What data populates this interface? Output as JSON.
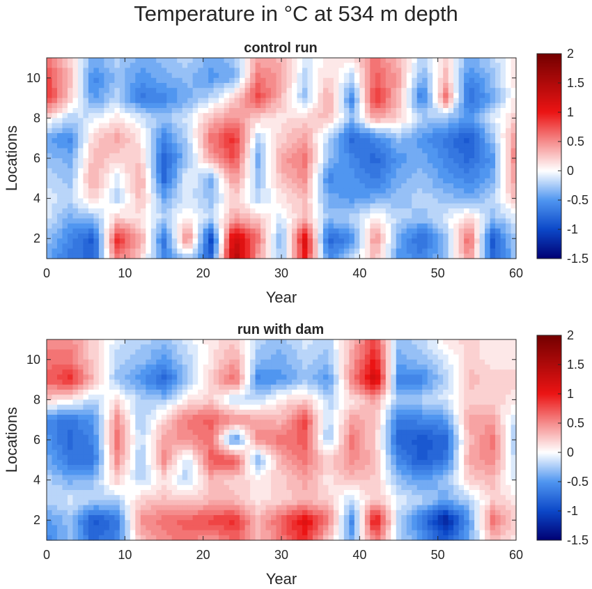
{
  "figure": {
    "title": "Temperature in °C at 534 m depth"
  },
  "chart_data": [
    {
      "type": "heatmap",
      "title": "control run",
      "xlabel": "Year",
      "ylabel": "Locations",
      "xlim": [
        0,
        60
      ],
      "ylim": [
        1,
        11
      ],
      "xticks": [
        "0",
        "10",
        "20",
        "30",
        "40",
        "50",
        "60"
      ],
      "yticks": [
        "2",
        "4",
        "6",
        "8",
        "10"
      ],
      "colorbar": {
        "min": -1.5,
        "max": 2,
        "ticks": [
          "2",
          "1.5",
          "1",
          "0.5",
          "0",
          "-0.5",
          "-1",
          "-1.5"
        ]
      },
      "x": [
        0,
        3,
        6,
        9,
        12,
        15,
        18,
        21,
        24,
        27,
        30,
        33,
        36,
        39,
        42,
        45,
        48,
        51,
        54,
        57,
        60
      ],
      "y": [
        1,
        2,
        3,
        4,
        5,
        6,
        7,
        8,
        9,
        10,
        11
      ],
      "z": [
        [
          -0.4,
          -0.7,
          -0.8,
          0.6,
          0.2,
          -0.6,
          -0.2,
          -0.8,
          1.5,
          0.4,
          -0.3,
          1.0,
          -0.6,
          -0.2,
          0.3,
          -0.5,
          -0.6,
          -0.3,
          0.5,
          -0.8,
          -0.3
        ],
        [
          -0.3,
          -0.6,
          -0.9,
          0.9,
          0.4,
          -0.7,
          0.6,
          -1.0,
          1.3,
          0.6,
          -0.4,
          1.1,
          -0.8,
          -0.6,
          0.5,
          -0.4,
          -0.8,
          -0.3,
          0.7,
          -0.9,
          -0.2
        ],
        [
          -0.1,
          -0.4,
          -0.3,
          0.2,
          0.1,
          -0.2,
          0.1,
          -0.2,
          0.4,
          0.2,
          -0.1,
          0.3,
          -0.3,
          -0.2,
          0.1,
          -0.2,
          -0.3,
          -0.1,
          0.2,
          -0.3,
          -0.1
        ],
        [
          -0.1,
          -0.2,
          0.2,
          -0.2,
          0.3,
          -0.4,
          -0.1,
          -0.3,
          0.2,
          -0.2,
          0.1,
          0.3,
          -0.4,
          -0.5,
          -0.4,
          -0.3,
          -0.2,
          -0.3,
          -0.4,
          -0.2,
          0.3
        ],
        [
          -0.2,
          -0.3,
          0.4,
          -0.1,
          0.4,
          -0.8,
          0.0,
          -0.4,
          0.5,
          -0.3,
          0.3,
          0.5,
          -0.6,
          -0.5,
          -0.7,
          -0.4,
          -0.3,
          -0.5,
          -0.6,
          -0.4,
          0.5
        ],
        [
          -0.3,
          -0.4,
          0.3,
          0.2,
          0.2,
          -0.8,
          -0.3,
          0.4,
          0.8,
          -0.4,
          0.4,
          0.6,
          -0.3,
          -0.6,
          -0.8,
          -0.5,
          -0.4,
          -0.6,
          -0.8,
          -0.5,
          0.6
        ],
        [
          -0.4,
          -0.6,
          0.2,
          0.4,
          0.1,
          -0.6,
          -0.2,
          0.6,
          0.9,
          -0.2,
          0.2,
          0.4,
          -0.2,
          -0.8,
          -0.6,
          -0.3,
          -0.5,
          -0.7,
          -0.9,
          -0.3,
          0.5
        ],
        [
          0.1,
          -0.2,
          -0.1,
          0.1,
          -0.1,
          -0.3,
          -0.1,
          0.3,
          0.5,
          0.2,
          0.1,
          0.2,
          0.3,
          -0.3,
          0.4,
          0.2,
          -0.2,
          -0.3,
          -0.5,
          -0.1,
          0.2
        ],
        [
          0.9,
          0.2,
          -0.5,
          -0.2,
          -0.7,
          -0.6,
          -0.4,
          -0.2,
          0.2,
          0.8,
          0.3,
          -0.3,
          0.4,
          -0.6,
          0.9,
          0.3,
          -0.7,
          0.6,
          -0.8,
          -0.4,
          0.1
        ],
        [
          0.8,
          0.3,
          -0.6,
          -0.3,
          -0.5,
          -0.4,
          -0.3,
          -0.5,
          -0.4,
          0.6,
          0.4,
          -0.2,
          0.2,
          -0.2,
          0.7,
          0.4,
          -0.4,
          0.3,
          -0.6,
          -0.3,
          0.1
        ],
        [
          0.6,
          0.2,
          -0.4,
          -0.2,
          -0.4,
          -0.3,
          -0.2,
          -0.4,
          -0.3,
          0.4,
          0.3,
          -0.1,
          0.1,
          0.1,
          0.6,
          0.3,
          -0.2,
          0.2,
          -0.4,
          -0.2,
          0.1
        ]
      ]
    },
    {
      "type": "heatmap",
      "title": "run with dam",
      "xlabel": "Year",
      "ylabel": "Locations",
      "xlim": [
        0,
        60
      ],
      "ylim": [
        1,
        11
      ],
      "xticks": [
        "0",
        "10",
        "20",
        "30",
        "40",
        "50",
        "60"
      ],
      "yticks": [
        "2",
        "4",
        "6",
        "8",
        "10"
      ],
      "colorbar": {
        "min": -1.5,
        "max": 2,
        "ticks": [
          "2",
          "1.5",
          "1",
          "0.5",
          "0",
          "-0.5",
          "-1",
          "-1.5"
        ]
      },
      "x": [
        0,
        3,
        6,
        9,
        12,
        15,
        18,
        21,
        24,
        27,
        30,
        33,
        36,
        39,
        42,
        45,
        48,
        51,
        54,
        57,
        60
      ],
      "y": [
        1,
        2,
        3,
        4,
        5,
        6,
        7,
        8,
        9,
        10,
        11
      ],
      "z": [
        [
          -0.6,
          -0.3,
          -0.8,
          -0.6,
          0.3,
          0.5,
          0.6,
          0.4,
          0.7,
          0.3,
          0.6,
          0.9,
          0.2,
          -0.4,
          0.6,
          -0.2,
          -0.5,
          -0.9,
          -0.4,
          0.3,
          0.1
        ],
        [
          -0.5,
          -0.3,
          -0.9,
          -0.7,
          0.5,
          0.6,
          0.7,
          0.8,
          0.9,
          0.3,
          0.7,
          1.1,
          0.6,
          -0.6,
          1.1,
          -0.2,
          -0.7,
          -1.3,
          -0.5,
          0.6,
          0.2
        ],
        [
          -0.2,
          -0.1,
          -0.2,
          -0.2,
          0.2,
          0.3,
          0.2,
          0.3,
          0.3,
          0.1,
          0.2,
          0.3,
          0.2,
          -0.2,
          0.3,
          -0.1,
          -0.2,
          -0.4,
          -0.2,
          0.2,
          0.1
        ],
        [
          -0.2,
          -0.4,
          -0.3,
          0.2,
          -0.2,
          0.1,
          -0.2,
          0.3,
          0.2,
          0.1,
          0.2,
          0.4,
          0.1,
          0.3,
          0.2,
          -0.3,
          -0.5,
          -0.3,
          0.2,
          0.3,
          -0.1
        ],
        [
          -0.4,
          -0.7,
          -0.7,
          0.5,
          -0.3,
          0.5,
          -0.2,
          0.7,
          0.8,
          -0.4,
          0.4,
          0.6,
          0.2,
          0.5,
          0.3,
          -0.6,
          -0.9,
          -0.7,
          0.4,
          0.5,
          -0.2
        ],
        [
          -0.5,
          -0.8,
          -0.6,
          0.6,
          -0.2,
          0.4,
          0.5,
          0.6,
          -0.6,
          0.5,
          0.6,
          0.7,
          -0.3,
          0.6,
          0.2,
          -0.8,
          -0.9,
          -0.8,
          0.3,
          0.6,
          -0.3
        ],
        [
          -0.6,
          -0.7,
          -0.5,
          0.5,
          -0.3,
          0.2,
          0.6,
          0.7,
          0.5,
          0.4,
          0.3,
          0.8,
          -0.2,
          0.4,
          0.3,
          -0.7,
          -0.6,
          -0.5,
          0.4,
          0.4,
          -0.2
        ],
        [
          0.2,
          0.1,
          -0.2,
          0.1,
          -0.2,
          -0.3,
          0.1,
          0.2,
          -0.2,
          -0.2,
          0.1,
          0.2,
          -0.2,
          0.1,
          0.4,
          -0.3,
          -0.2,
          -0.1,
          0.2,
          0.2,
          0.1
        ],
        [
          0.7,
          0.9,
          0.3,
          -0.3,
          -0.5,
          -0.8,
          -0.3,
          0.2,
          0.7,
          -0.6,
          -0.5,
          -0.3,
          -0.5,
          0.5,
          1.3,
          -0.6,
          -0.6,
          -0.2,
          0.3,
          0.2,
          0.2
        ],
        [
          0.6,
          0.6,
          0.2,
          -0.2,
          -0.3,
          -0.5,
          -0.2,
          0.1,
          0.4,
          -0.3,
          -0.4,
          -0.2,
          -0.3,
          0.4,
          1.0,
          -0.4,
          -0.3,
          -0.1,
          0.2,
          0.1,
          0.1
        ],
        [
          0.5,
          0.5,
          0.2,
          -0.1,
          -0.2,
          -0.3,
          -0.1,
          0.1,
          0.2,
          -0.2,
          -0.3,
          -0.1,
          -0.2,
          0.3,
          0.8,
          -0.3,
          -0.2,
          0.1,
          0.2,
          0.1,
          0.1
        ]
      ]
    }
  ]
}
